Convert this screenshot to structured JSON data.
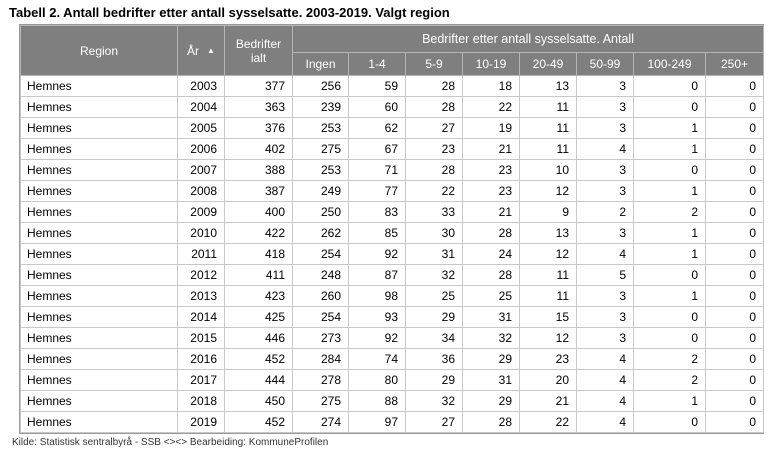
{
  "title": "Tabell 2. Antall bedrifter etter antall sysselsatte. 2003-2019. Valgt region",
  "headers": {
    "region": "Region",
    "year": "År",
    "total_line1": "Bedrifter",
    "total_line2": "ialt",
    "group": "Bedrifter etter antall sysselsatte. Antall",
    "sub": [
      "Ingen",
      "1-4",
      "5-9",
      "10-19",
      "20-49",
      "50-99",
      "100-249",
      "250+"
    ]
  },
  "rows": [
    [
      "Hemnes",
      "2003",
      "377",
      "256",
      "59",
      "28",
      "18",
      "13",
      "3",
      "0",
      "0"
    ],
    [
      "Hemnes",
      "2004",
      "363",
      "239",
      "60",
      "28",
      "22",
      "11",
      "3",
      "0",
      "0"
    ],
    [
      "Hemnes",
      "2005",
      "376",
      "253",
      "62",
      "27",
      "19",
      "11",
      "3",
      "1",
      "0"
    ],
    [
      "Hemnes",
      "2006",
      "402",
      "275",
      "67",
      "23",
      "21",
      "11",
      "4",
      "1",
      "0"
    ],
    [
      "Hemnes",
      "2007",
      "388",
      "253",
      "71",
      "28",
      "23",
      "10",
      "3",
      "0",
      "0"
    ],
    [
      "Hemnes",
      "2008",
      "387",
      "249",
      "77",
      "22",
      "23",
      "12",
      "3",
      "1",
      "0"
    ],
    [
      "Hemnes",
      "2009",
      "400",
      "250",
      "83",
      "33",
      "21",
      "9",
      "2",
      "2",
      "0"
    ],
    [
      "Hemnes",
      "2010",
      "422",
      "262",
      "85",
      "30",
      "28",
      "13",
      "3",
      "1",
      "0"
    ],
    [
      "Hemnes",
      "2011",
      "418",
      "254",
      "92",
      "31",
      "24",
      "12",
      "4",
      "1",
      "0"
    ],
    [
      "Hemnes",
      "2012",
      "411",
      "248",
      "87",
      "32",
      "28",
      "11",
      "5",
      "0",
      "0"
    ],
    [
      "Hemnes",
      "2013",
      "423",
      "260",
      "98",
      "25",
      "25",
      "11",
      "3",
      "1",
      "0"
    ],
    [
      "Hemnes",
      "2014",
      "425",
      "254",
      "93",
      "29",
      "31",
      "15",
      "3",
      "0",
      "0"
    ],
    [
      "Hemnes",
      "2015",
      "446",
      "273",
      "92",
      "34",
      "32",
      "12",
      "3",
      "0",
      "0"
    ],
    [
      "Hemnes",
      "2016",
      "452",
      "284",
      "74",
      "36",
      "29",
      "23",
      "4",
      "2",
      "0"
    ],
    [
      "Hemnes",
      "2017",
      "444",
      "278",
      "80",
      "29",
      "31",
      "20",
      "4",
      "2",
      "0"
    ],
    [
      "Hemnes",
      "2018",
      "450",
      "275",
      "88",
      "32",
      "29",
      "21",
      "4",
      "1",
      "0"
    ],
    [
      "Hemnes",
      "2019",
      "452",
      "274",
      "97",
      "27",
      "28",
      "22",
      "4",
      "0",
      "0"
    ]
  ],
  "footer": "Kilde: Statistisk sentralbyrå - SSB  <><>  Bearbeiding: KommuneProfilen"
}
